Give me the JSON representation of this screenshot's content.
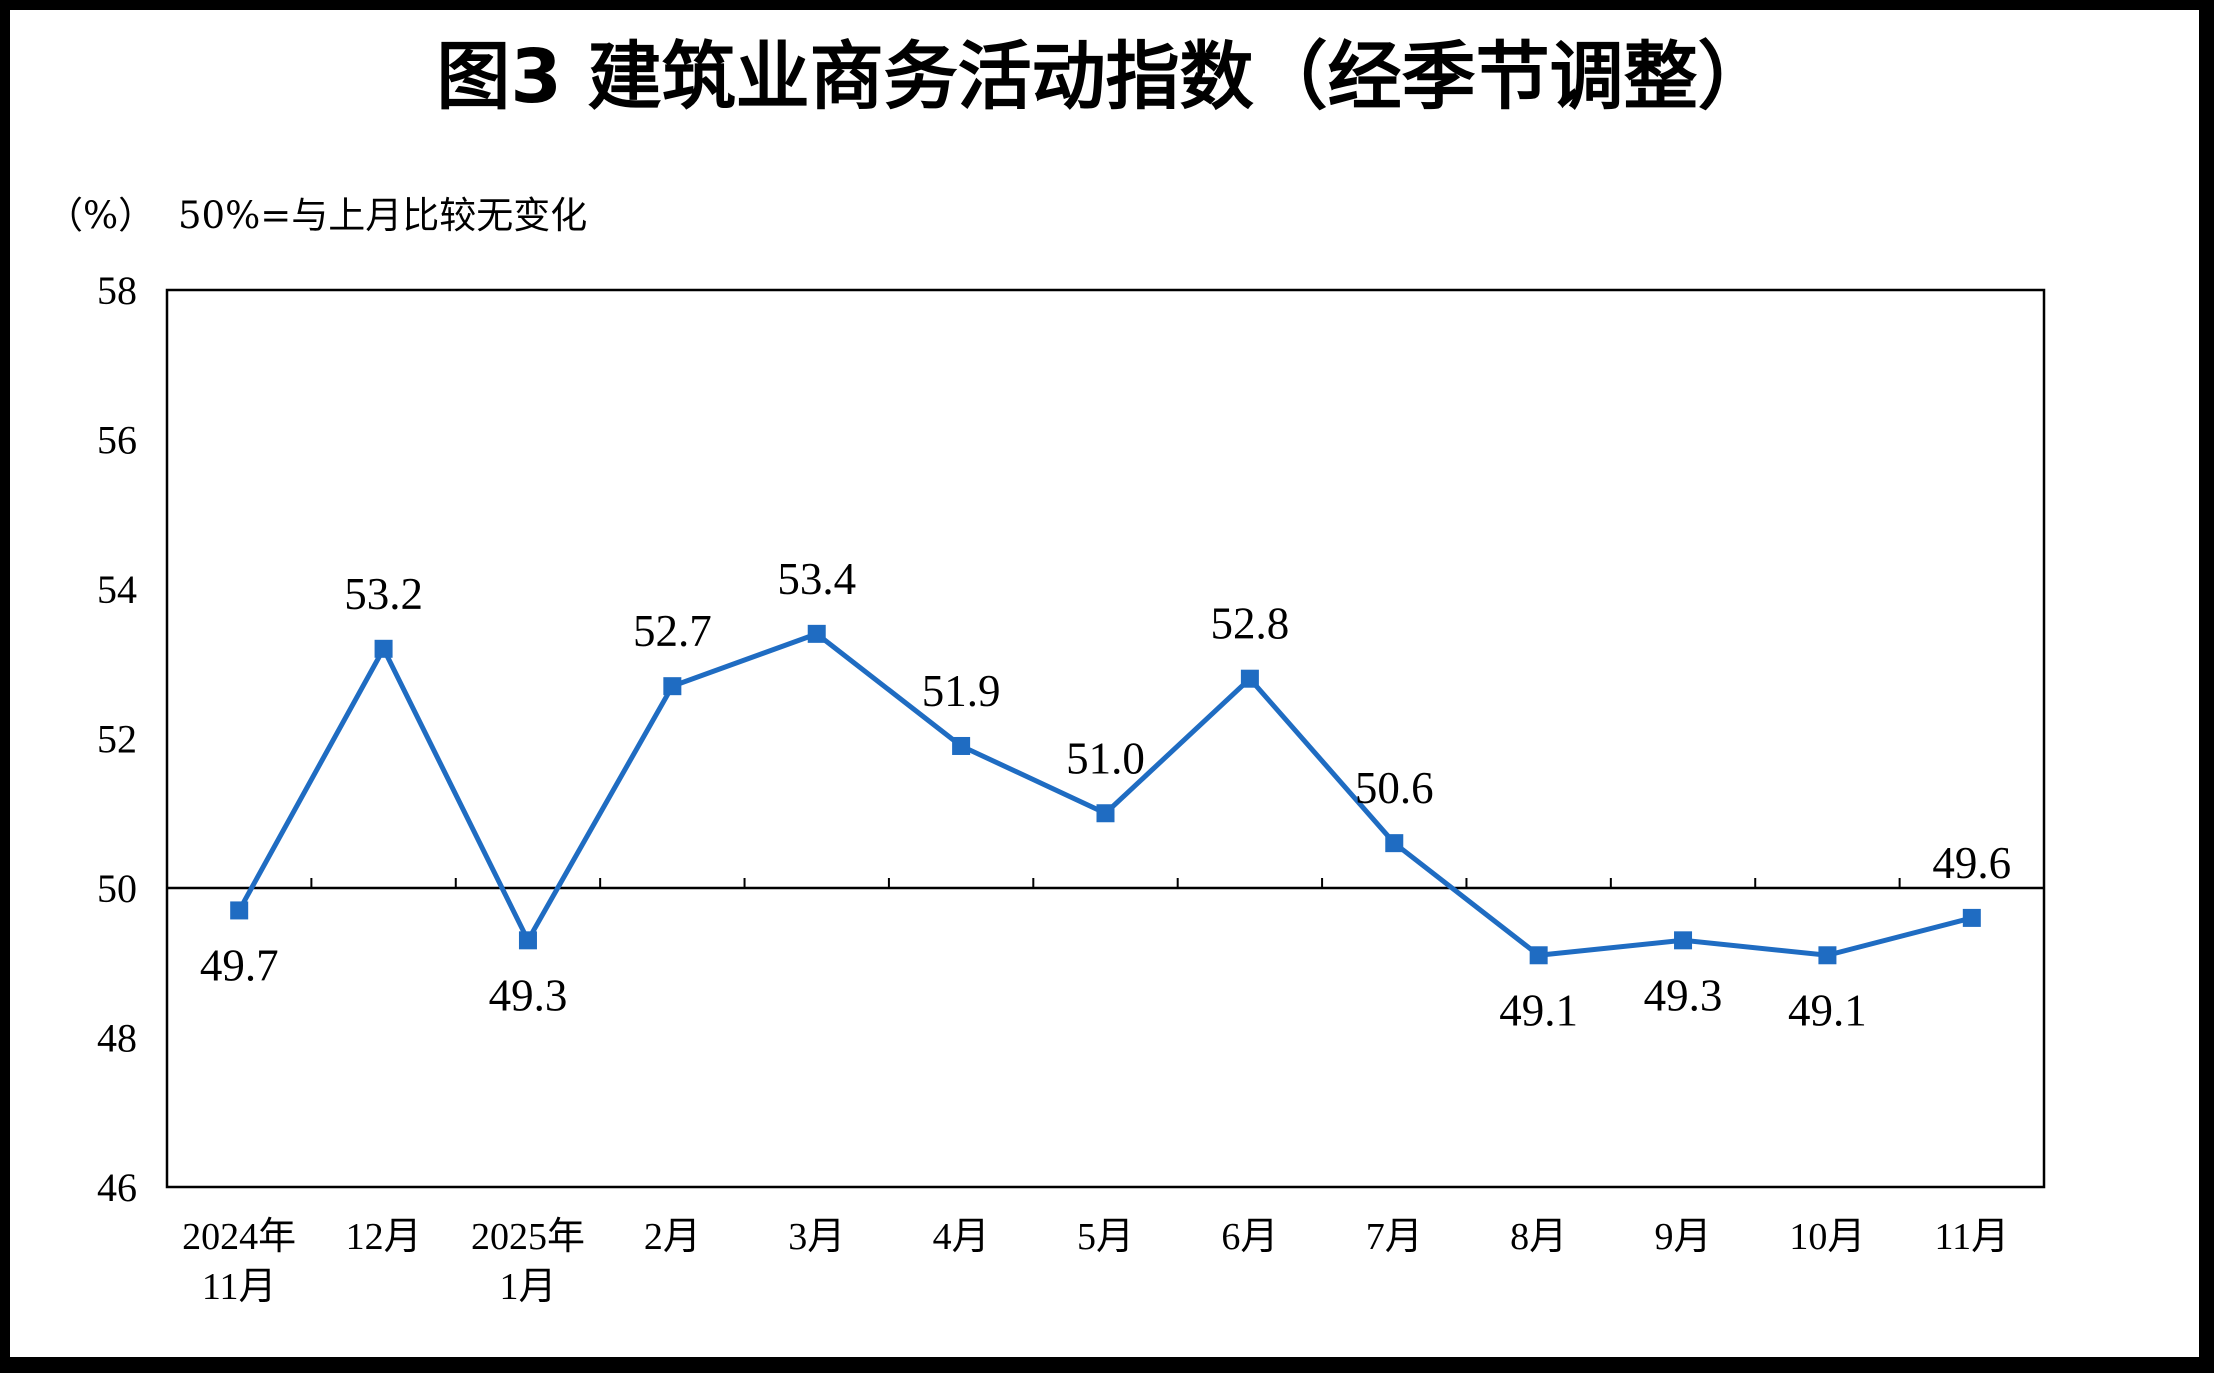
{
  "chart_data": {
    "type": "line",
    "title": "图3  建筑业商务活动指数（经季节调整）",
    "unit_label": "（%）",
    "note": "50%=与上月比较无变化",
    "categories": [
      [
        "2024年",
        "11月"
      ],
      [
        "12月"
      ],
      [
        "2025年",
        "1月"
      ],
      [
        "2月"
      ],
      [
        "3月"
      ],
      [
        "4月"
      ],
      [
        "5月"
      ],
      [
        "6月"
      ],
      [
        "7月"
      ],
      [
        "8月"
      ],
      [
        "9月"
      ],
      [
        "10月"
      ],
      [
        "11月"
      ]
    ],
    "values": [
      49.7,
      53.2,
      49.3,
      52.7,
      53.4,
      51.9,
      51.0,
      52.8,
      50.6,
      49.1,
      49.3,
      49.1,
      49.6
    ],
    "value_labels": [
      "49.7",
      "53.2",
      "49.3",
      "52.7",
      "53.4",
      "51.9",
      "51.0",
      "52.8",
      "50.6",
      "49.1",
      "49.3",
      "49.1",
      "49.6"
    ],
    "label_position": [
      "below",
      "above",
      "below",
      "above",
      "above",
      "above",
      "above",
      "above",
      "above",
      "below",
      "below",
      "below",
      "above"
    ],
    "ylim": [
      46,
      58
    ],
    "yticks": [
      "46",
      "48",
      "50",
      "52",
      "54",
      "56",
      "58"
    ],
    "reference_line": 50,
    "grid": false,
    "colors": {
      "series": "#1F6CC2",
      "axis": "#000000",
      "frame": "#000000"
    }
  }
}
